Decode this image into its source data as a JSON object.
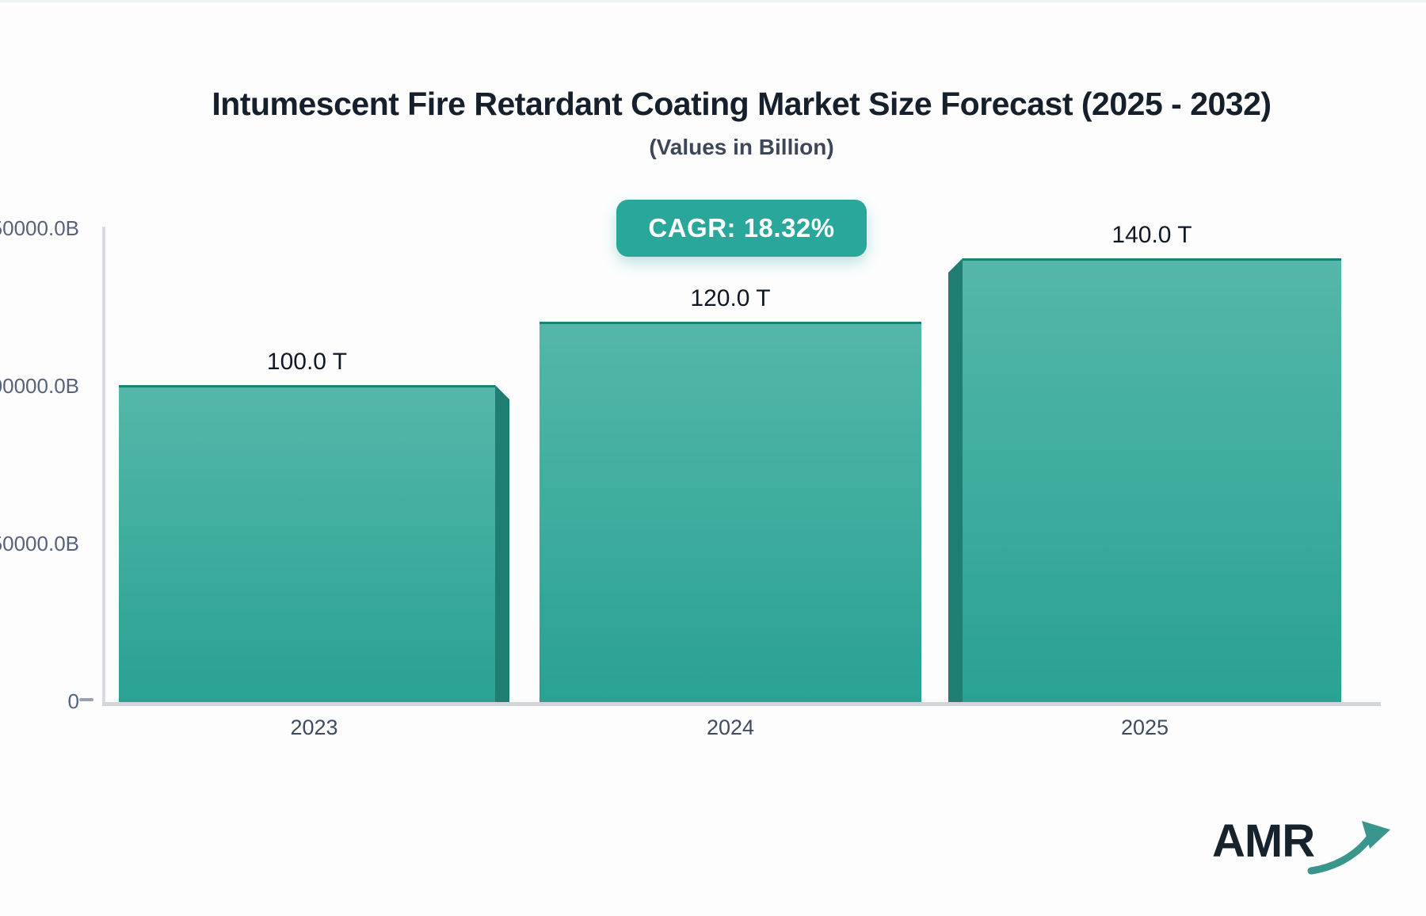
{
  "chart_data": {
    "type": "bar",
    "title": "Intumescent Fire Retardant Coating Market Size Forecast (2025 - 2032)",
    "subtitle": "(Values in Billion)",
    "cagr_label": "CAGR: 18.32%",
    "unit": "Billion",
    "categories": [
      "2023",
      "2024",
      "2025"
    ],
    "values": [
      100000,
      120000,
      140000
    ],
    "value_labels": [
      "100.0 T",
      "120.0 T",
      "140.0 T"
    ],
    "ylim": [
      0,
      150000
    ],
    "ytick_labels_visible": [
      "50000.0B",
      "00000.0B",
      "50000.0B",
      "0"
    ],
    "grid": "off",
    "legend": "none",
    "bar_color_top": "#54b7a9",
    "bar_color_bottom": "#29a193",
    "bar_side_color": "#1f7e71",
    "accent_color": "#2aa79b"
  },
  "logo": {
    "text": "AMR"
  }
}
